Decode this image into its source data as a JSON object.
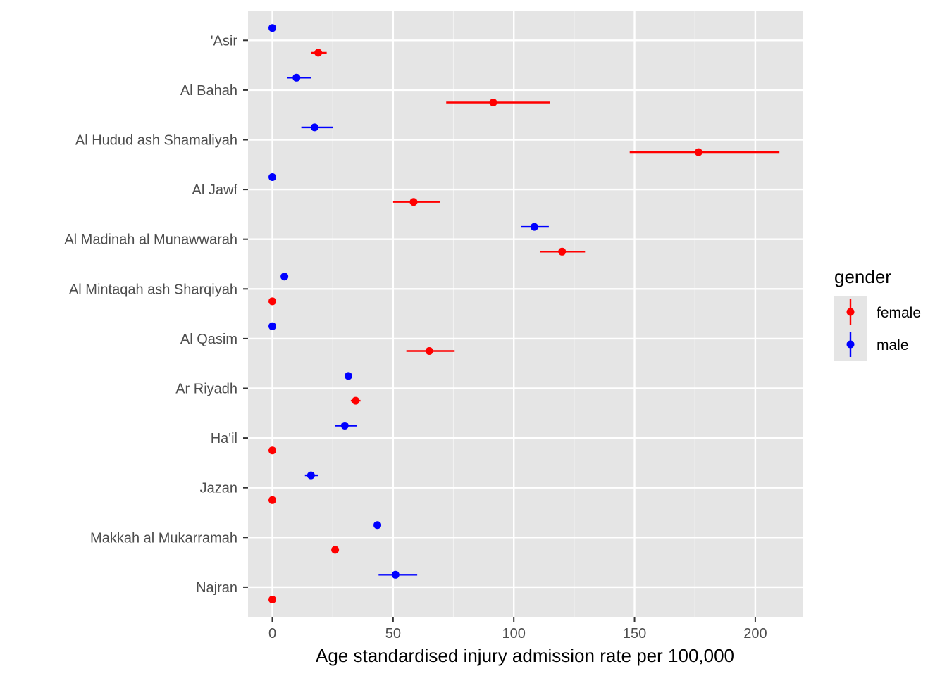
{
  "chart_data": {
    "type": "scatter",
    "subtype": "pointrange",
    "title": "",
    "xlabel": "Age standardised injury admission rate per 100,000",
    "ylabel": "",
    "xlim": [
      -10,
      220
    ],
    "x_ticks": [
      0,
      50,
      100,
      150,
      200
    ],
    "x_tick_labels": [
      "0",
      "50",
      "100",
      "150",
      "200"
    ],
    "grid": true,
    "background": "#e5e5e5",
    "categories": [
      "'Asir",
      "Al Bahah",
      "Al Hudud ash Shamaliyah",
      "Al Jawf",
      "Al Madinah al Munawwarah",
      "Al Mintaqah ash Sharqiyah",
      "Al Qasim",
      "Ar Riyadh",
      "Ha'il",
      "Jazan",
      "Makkah al Mukarramah",
      "Najran"
    ],
    "legend": {
      "title": "gender",
      "position": "right",
      "items": [
        {
          "label": "female",
          "color": "#ff0000"
        },
        {
          "label": "male",
          "color": "#0000ff"
        }
      ]
    },
    "series": [
      {
        "name": "male",
        "color": "#0000ff",
        "points": [
          {
            "category": "'Asir",
            "value": 0,
            "low": 0,
            "high": 0
          },
          {
            "category": "Al Bahah",
            "value": 10,
            "low": 6,
            "high": 16
          },
          {
            "category": "Al Hudud ash Shamaliyah",
            "value": 17.5,
            "low": 12,
            "high": 25
          },
          {
            "category": "Al Jawf",
            "value": 0,
            "low": 0,
            "high": 0
          },
          {
            "category": "Al Madinah al Munawwarah",
            "value": 108.5,
            "low": 103,
            "high": 114.5
          },
          {
            "category": "Al Mintaqah ash Sharqiyah",
            "value": 5,
            "low": 5,
            "high": 5
          },
          {
            "category": "Al Qasim",
            "value": 0,
            "low": 0,
            "high": 0
          },
          {
            "category": "Ar Riyadh",
            "value": 31.5,
            "low": 30.5,
            "high": 32.5
          },
          {
            "category": "Ha'il",
            "value": 30,
            "low": 26,
            "high": 35
          },
          {
            "category": "Jazan",
            "value": 16,
            "low": 13.5,
            "high": 19
          },
          {
            "category": "Makkah al Mukarramah",
            "value": 43.5,
            "low": 43,
            "high": 44
          },
          {
            "category": "Najran",
            "value": 51,
            "low": 44,
            "high": 60
          }
        ]
      },
      {
        "name": "female",
        "color": "#ff0000",
        "points": [
          {
            "category": "'Asir",
            "value": 19,
            "low": 16,
            "high": 22.5
          },
          {
            "category": "Al Bahah",
            "value": 91.5,
            "low": 72,
            "high": 115
          },
          {
            "category": "Al Hudud ash Shamaliyah",
            "value": 176.5,
            "low": 148,
            "high": 210
          },
          {
            "category": "Al Jawf",
            "value": 58.5,
            "low": 50,
            "high": 69.5
          },
          {
            "category": "Al Madinah al Munawwarah",
            "value": 120,
            "low": 111,
            "high": 129.5
          },
          {
            "category": "Al Mintaqah ash Sharqiyah",
            "value": 0,
            "low": 0,
            "high": 0
          },
          {
            "category": "Al Qasim",
            "value": 65,
            "low": 55.5,
            "high": 75.5
          },
          {
            "category": "Ar Riyadh",
            "value": 34.5,
            "low": 32.5,
            "high": 36.5
          },
          {
            "category": "Ha'il",
            "value": 0,
            "low": 0,
            "high": 0
          },
          {
            "category": "Jazan",
            "value": 0,
            "low": 0,
            "high": 0
          },
          {
            "category": "Makkah al Mukarramah",
            "value": 26,
            "low": 25.5,
            "high": 27
          },
          {
            "category": "Najran",
            "value": 0,
            "low": 0,
            "high": 0
          }
        ]
      }
    ]
  }
}
